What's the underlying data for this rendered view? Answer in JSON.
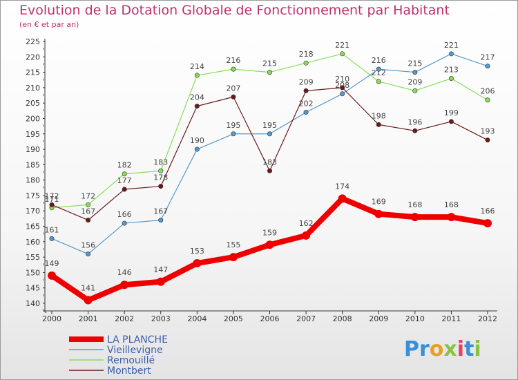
{
  "header": {
    "title": "Evolution de la Dotation Globale de Fonctionnement par Habitant",
    "subtitle": "(en € et par an)"
  },
  "logo": {
    "text": "Proxiti"
  },
  "chart_data": {
    "type": "line",
    "x": [
      2000,
      2001,
      2002,
      2003,
      2004,
      2005,
      2006,
      2007,
      2008,
      2009,
      2010,
      2011,
      2012
    ],
    "ylim": [
      140,
      225
    ],
    "yticks": [
      140,
      145,
      150,
      155,
      160,
      165,
      170,
      175,
      180,
      185,
      190,
      195,
      200,
      205,
      210,
      215,
      220,
      225
    ],
    "grid": false,
    "legend_position": "bottom-left",
    "series": [
      {
        "name": "Remouillé",
        "color": "#88dd55",
        "values": [
          171,
          172,
          182,
          183,
          214,
          216,
          215,
          218,
          221,
          212,
          209,
          213,
          206
        ]
      },
      {
        "name": "Vieillevigne",
        "color": "#5599cc",
        "values": [
          161,
          156,
          166,
          167,
          190,
          195,
          195,
          202,
          208,
          216,
          215,
          221,
          217
        ]
      },
      {
        "name": "Montbert",
        "color": "#6b1a1a",
        "values": [
          172,
          167,
          177,
          178,
          204,
          207,
          183,
          209,
          210,
          198,
          196,
          199,
          193
        ]
      },
      {
        "name": "LA PLANCHE",
        "color": "#ee0000",
        "values": [
          149,
          141,
          146,
          147,
          153,
          155,
          159,
          162,
          174,
          169,
          168,
          168,
          166
        ]
      }
    ],
    "legend_order": [
      "LA PLANCHE",
      "Vieillevigne",
      "Remouillé",
      "Montbert"
    ]
  }
}
